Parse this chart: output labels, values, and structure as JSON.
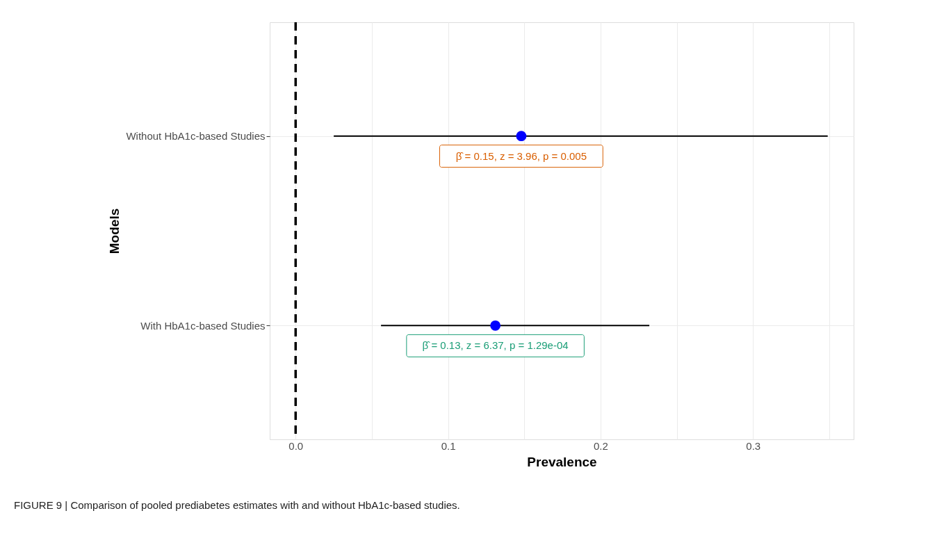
{
  "chart_data": {
    "type": "scatter",
    "xlabel": "Prevalence",
    "ylabel": "Models",
    "categories": [
      "Without HbA1c-based Studies",
      "With HbA1c-based Studies"
    ],
    "orientation": "horizontal",
    "values": [
      0.148,
      0.131
    ],
    "colors": [
      "#0000ff",
      "#0000ff"
    ],
    "errors": [
      [
        0.025,
        0.349
      ],
      [
        0.056,
        0.232
      ]
    ],
    "xlim": [
      -0.017,
      0.366
    ],
    "xticks": [
      {
        "value": 0,
        "label": "0.0"
      },
      {
        "value": 0.05,
        "label": null
      },
      {
        "value": 0.1,
        "label": "0.1"
      },
      {
        "value": 0.15,
        "label": null
      },
      {
        "value": 0.2,
        "label": "0.2"
      },
      {
        "value": 0.25,
        "label": null
      },
      {
        "value": 0.3,
        "label": "0.3"
      },
      {
        "value": 0.35,
        "label": null
      }
    ],
    "grid": true,
    "marker": "circle",
    "ref_lines": [
      {
        "axis": "x",
        "value": 0,
        "color": "#000000",
        "line_style": "dashed"
      }
    ],
    "annotations": [
      {
        "text": "β̂ = 0.15,  z = 3.96,  p = 0.005",
        "x": 0.148,
        "y": "Without HbA1c-based Studies"
      },
      {
        "text": "β̂ = 0.13,  z = 6.37,  p = 1.29e-04",
        "x": 0.131,
        "y": "With HbA1c-based Studies"
      },
      "FIGURE 9 | Comparison of pooled prediabetes estimates with and without HbA1c-based studies."
    ]
  }
}
